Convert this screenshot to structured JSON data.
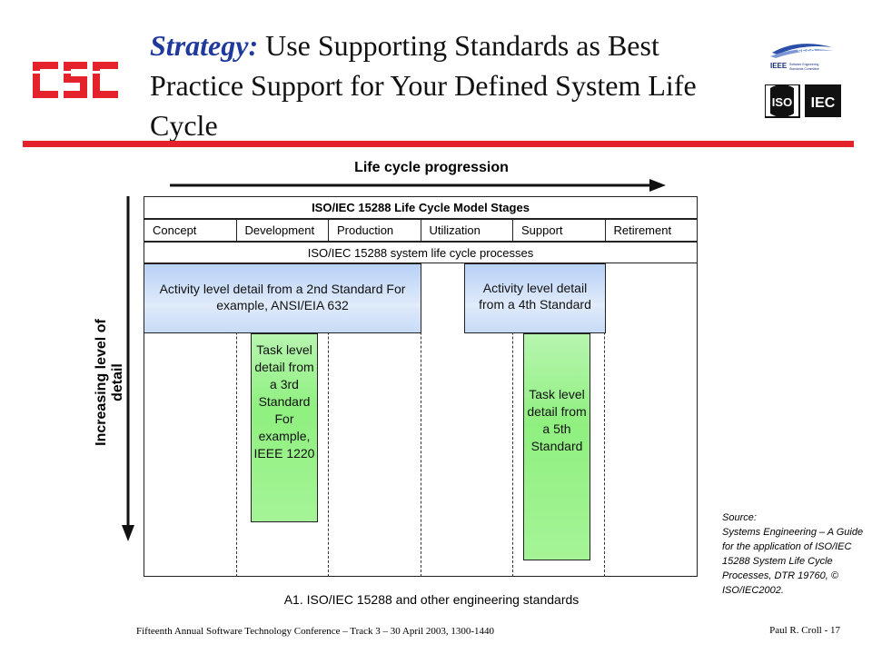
{
  "title": {
    "keyword": "Strategy:",
    "text": " Use Supporting Standards as Best Practice Support for Your Defined System Life Cycle"
  },
  "logos": {
    "csc": "CSC",
    "seso": "SESO",
    "ieee": "IEEE",
    "ieee_subtitle": "Software Engineering Standards Committee",
    "iso": "ISO",
    "iec": "IEC"
  },
  "diagram": {
    "life_cycle_label": "Life cycle progression",
    "detail_label": "Increasing level of detail",
    "stages_header": "ISO/IEC 15288 Life Cycle Model Stages",
    "stages": [
      "Concept",
      "Development",
      "Production",
      "Utilization",
      "Support",
      "Retirement"
    ],
    "processes": "ISO/IEC 15288 system life cycle processes",
    "activity_2nd": "Activity level detail from a 2nd Standard For example, ANSI/EIA 632",
    "activity_4th": "Activity level detail from a 4th Standard",
    "task_3rd": "Task level detail from a 3rd Standard For example, IEEE 1220",
    "task_5th": "Task level detail from a 5th Standard",
    "caption": "A1.   ISO/IEC 15288 and other engineering standards"
  },
  "source": "Source:\nSystems Engineering – A Guide for the application of ISO/IEC 15288 System Life Cycle Processes, DTR 19760, © ISO/IEC2002.",
  "footer": {
    "left": "Fifteenth Annual Software Technology Conference – Track 3 – 30 April 2003, 1300-1440",
    "right": "Paul R. Croll - 17"
  },
  "colors": {
    "title_keyword": "#1f3a9c",
    "rule": "#e3222b",
    "activity_box": "#c7dbf7",
    "task_box": "#9ef28f"
  }
}
